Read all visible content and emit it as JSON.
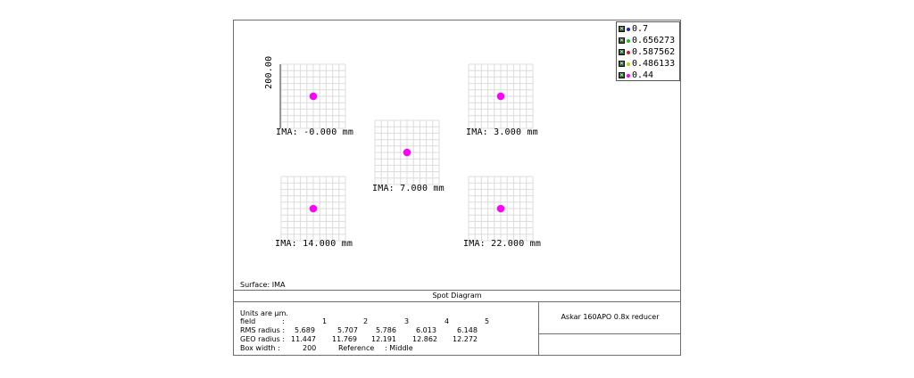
{
  "legend": [
    {
      "label": "0.7",
      "color": "#2020c8"
    },
    {
      "label": "0.656273",
      "color": "#20c020"
    },
    {
      "label": "0.587562",
      "color": "#d02020"
    },
    {
      "label": "0.486133",
      "color": "#c8c820"
    },
    {
      "label": "0.44",
      "color": "#ff00ff"
    }
  ],
  "spots": [
    {
      "label": "IMA: -0.000 mm"
    },
    {
      "label": "IMA: 3.000 mm"
    },
    {
      "label": "IMA: 7.000 mm"
    },
    {
      "label": "IMA: 14.000 mm"
    },
    {
      "label": "IMA: 22.000 mm"
    }
  ],
  "scale_label": "200.00",
  "spot_color": "#ff00ff",
  "surface": "Surface: IMA",
  "title": "Spot Diagram",
  "info": {
    "units": "Units are µm.",
    "field_label": "field",
    "field_sep": ":",
    "fields": [
      "1",
      "2",
      "3",
      "4",
      "5"
    ],
    "rms_label": "RMS radius :",
    "rms": [
      "5.689",
      "5.707",
      "5.786",
      "6.013",
      "6.148"
    ],
    "geo_label": "GEO radius :",
    "geo": [
      "11.447",
      "11.769",
      "12.191",
      "12.862",
      "12.272"
    ],
    "box_label": "Box width  :",
    "box_value": "200",
    "ref_label": "Reference",
    "ref_value": ": Middle"
  },
  "lens_name": "Askar 160APO 0.8x reducer"
}
